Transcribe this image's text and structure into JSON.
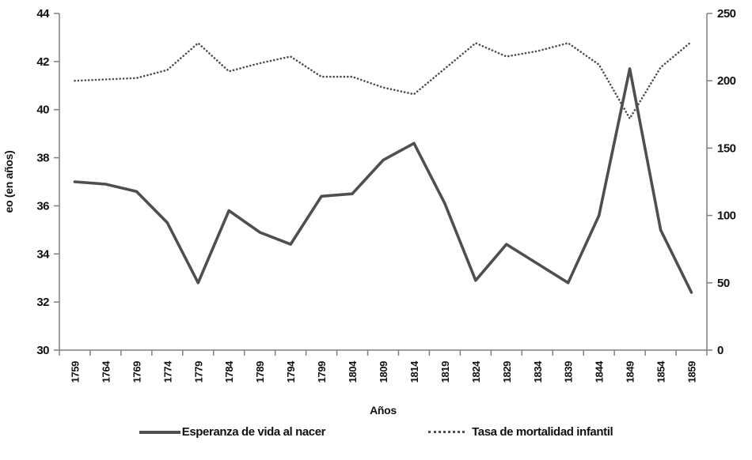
{
  "chart_data": {
    "type": "line",
    "title": "",
    "xlabel": "Años",
    "ylabel_left": "eo (en años)",
    "grid": false,
    "legend_position": "bottom",
    "x": [
      1759,
      1764,
      1769,
      1774,
      1779,
      1784,
      1789,
      1794,
      1799,
      1804,
      1809,
      1814,
      1819,
      1824,
      1829,
      1834,
      1839,
      1844,
      1849,
      1854,
      1859
    ],
    "series": [
      {
        "name": "Esperanza de vida al nacer",
        "axis": "left",
        "style": "solid",
        "values": [
          37.0,
          36.9,
          36.6,
          35.3,
          32.8,
          35.8,
          34.9,
          34.4,
          36.4,
          36.5,
          37.9,
          38.6,
          36.1,
          32.9,
          34.4,
          33.6,
          32.8,
          35.6,
          41.7,
          35.0,
          32.4
        ]
      },
      {
        "name": "Tasa de mortalidad infantil",
        "axis": "right",
        "style": "dotted",
        "values": [
          200,
          201,
          202,
          208,
          228,
          207,
          213,
          218,
          203,
          203,
          195,
          190,
          209,
          228,
          218,
          222,
          228,
          212,
          172,
          210,
          229
        ]
      }
    ],
    "left_axis": {
      "min": 30,
      "max": 44,
      "ticks": [
        30,
        32,
        34,
        36,
        38,
        40,
        42,
        44
      ]
    },
    "right_axis": {
      "min": 0,
      "max": 250,
      "ticks": [
        0,
        50,
        100,
        150,
        200,
        250
      ]
    }
  },
  "colors": {
    "series": "#4f4f4f",
    "axis": "#7f7f7f",
    "text": "#111111",
    "background": "#ffffff"
  }
}
